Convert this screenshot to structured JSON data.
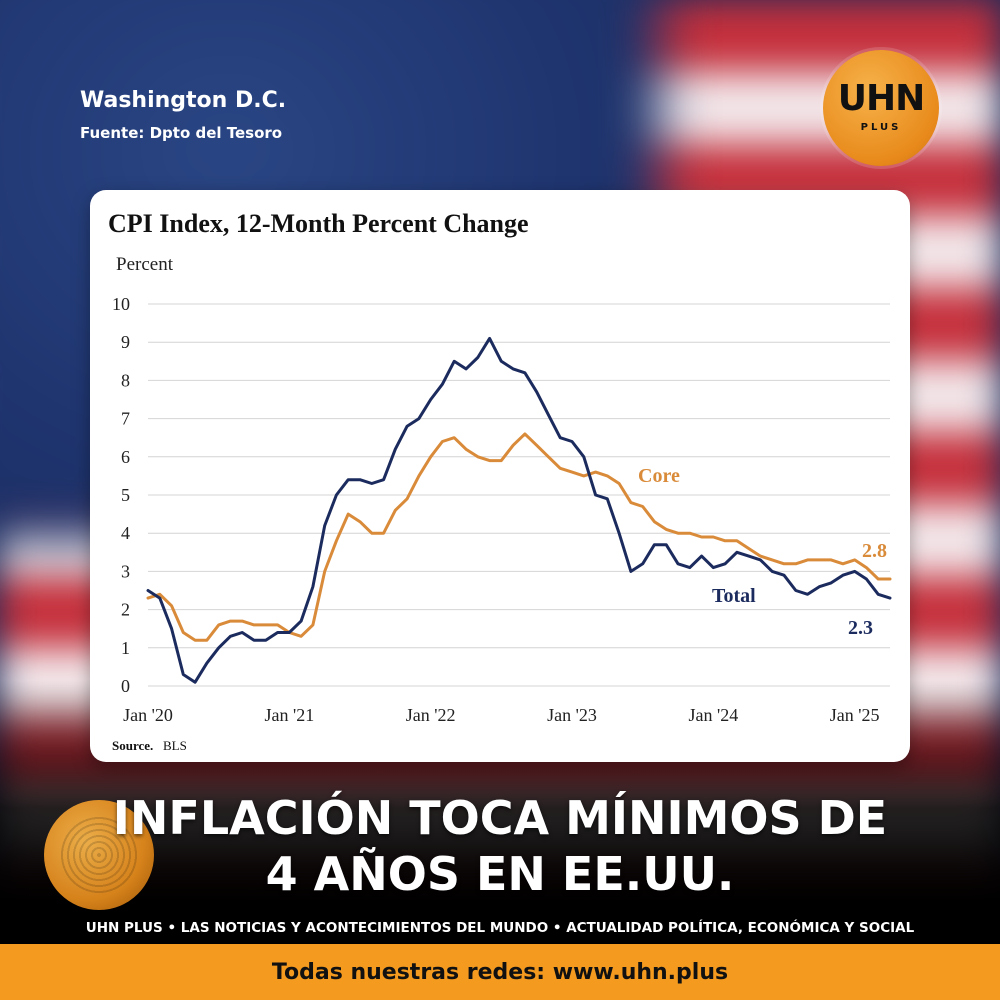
{
  "header": {
    "location": "Washington D.C.",
    "source": "Fuente: Dpto del Tesoro"
  },
  "logo": {
    "text": "UHN",
    "subtext": "PLUS"
  },
  "chart_data": {
    "type": "line",
    "title": "CPI Index, 12-Month Percent Change",
    "ylabel": "Percent",
    "xlabel": "",
    "ylim": [
      0,
      10
    ],
    "yticks": [
      "0",
      "1",
      "2",
      "3",
      "4",
      "5",
      "6",
      "7",
      "8",
      "9",
      "10"
    ],
    "xticks": [
      {
        "label": "Jan '20",
        "month": 0
      },
      {
        "label": "Jan '21",
        "month": 12
      },
      {
        "label": "Jan '22",
        "month": 24
      },
      {
        "label": "Jan '23",
        "month": 36
      },
      {
        "label": "Jan '24",
        "month": 48
      },
      {
        "label": "Jan '25",
        "month": 60
      }
    ],
    "grid": true,
    "source_label": "Source.",
    "source_value": "BLS",
    "series": [
      {
        "name": "Total",
        "color": "#1c2b5e",
        "end_label": "2.3",
        "values": [
          2.5,
          2.3,
          1.5,
          0.3,
          0.1,
          0.6,
          1.0,
          1.3,
          1.4,
          1.2,
          1.2,
          1.4,
          1.4,
          1.7,
          2.6,
          4.2,
          5.0,
          5.4,
          5.4,
          5.3,
          5.4,
          6.2,
          6.8,
          7.0,
          7.5,
          7.9,
          8.5,
          8.3,
          8.6,
          9.1,
          8.5,
          8.3,
          8.2,
          7.7,
          7.1,
          6.5,
          6.4,
          6.0,
          5.0,
          4.9,
          4.0,
          3.0,
          3.2,
          3.7,
          3.7,
          3.2,
          3.1,
          3.4,
          3.1,
          3.2,
          3.5,
          3.4,
          3.3,
          3.0,
          2.9,
          2.5,
          2.4,
          2.6,
          2.7,
          2.9,
          3.0,
          2.8,
          2.4,
          2.3
        ]
      },
      {
        "name": "Core",
        "color": "#d98b3a",
        "end_label": "2.8",
        "values": [
          2.3,
          2.4,
          2.1,
          1.4,
          1.2,
          1.2,
          1.6,
          1.7,
          1.7,
          1.6,
          1.6,
          1.6,
          1.4,
          1.3,
          1.6,
          3.0,
          3.8,
          4.5,
          4.3,
          4.0,
          4.0,
          4.6,
          4.9,
          5.5,
          6.0,
          6.4,
          6.5,
          6.2,
          6.0,
          5.9,
          5.9,
          6.3,
          6.6,
          6.3,
          6.0,
          5.7,
          5.6,
          5.5,
          5.6,
          5.5,
          5.3,
          4.8,
          4.7,
          4.3,
          4.1,
          4.0,
          4.0,
          3.9,
          3.9,
          3.8,
          3.8,
          3.6,
          3.4,
          3.3,
          3.2,
          3.2,
          3.3,
          3.3,
          3.3,
          3.2,
          3.3,
          3.1,
          2.8,
          2.8
        ]
      }
    ]
  },
  "headline": {
    "line1": "INFLACIÓN TOCA MÍNIMOS DE",
    "line2": "4 AÑOS EN EE.UU."
  },
  "tagline": "UHN PLUS • LAS NOTICIAS Y ACONTECIMIENTOS DEL MUNDO • ACTUALIDAD POLÍTICA, ECONÓMICA Y SOCIAL",
  "footer": {
    "text": "Todas nuestras redes: www.uhn.plus"
  },
  "colors": {
    "accent": "#f39a1f",
    "total_line": "#1c2b5e",
    "core_line": "#d98b3a"
  }
}
